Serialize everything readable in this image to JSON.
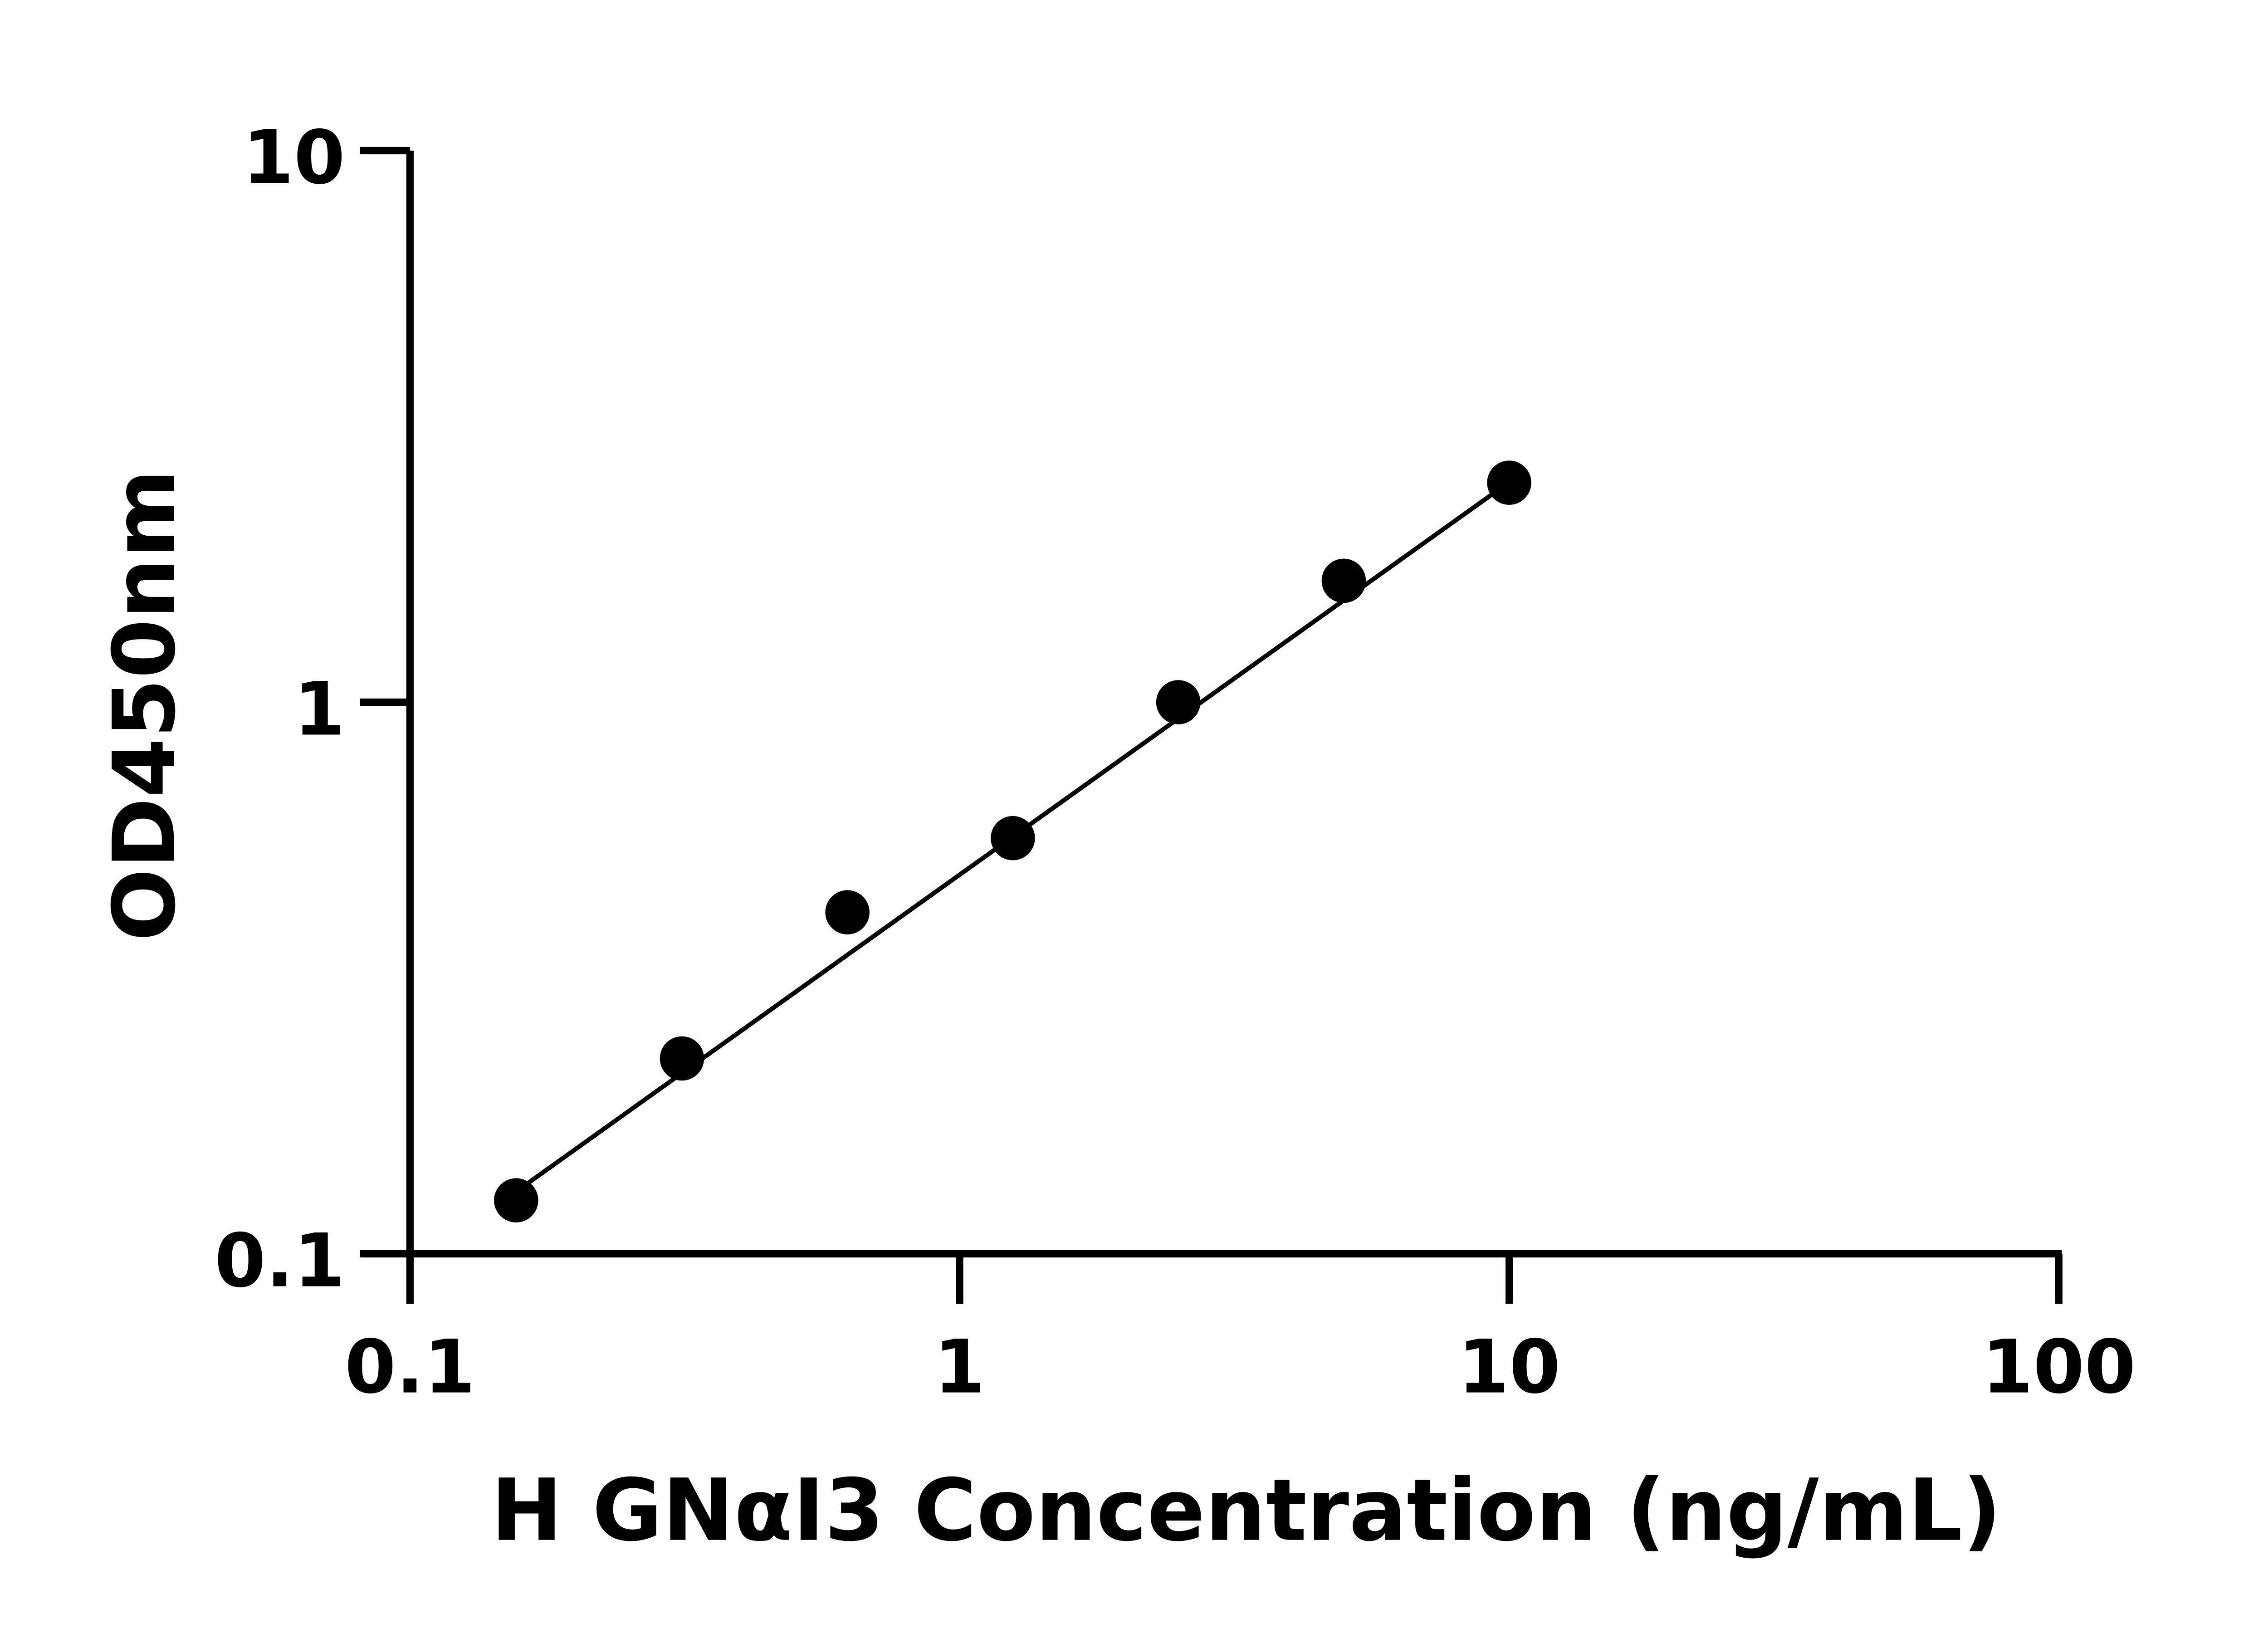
{
  "chart_data": {
    "type": "scatter",
    "title": "",
    "xlabel": "H GNαI3 Concentration (ng/mL)",
    "ylabel": "OD450nm",
    "x_scale": "log",
    "y_scale": "log",
    "xlim": [
      0.1,
      100
    ],
    "ylim": [
      0.1,
      10
    ],
    "x_ticks": [
      "0.1",
      "1",
      "10",
      "100"
    ],
    "y_ticks": [
      "0.1",
      "1",
      "10"
    ],
    "grid": false,
    "marker_color": "#000000",
    "points": [
      {
        "x": 0.156,
        "y": 0.125
      },
      {
        "x": 0.3125,
        "y": 0.226
      },
      {
        "x": 0.625,
        "y": 0.416
      },
      {
        "x": 1.25,
        "y": 0.567
      },
      {
        "x": 2.5,
        "y": 1.0
      },
      {
        "x": 5,
        "y": 1.66
      },
      {
        "x": 10,
        "y": 2.5
      }
    ],
    "fit_line": {
      "x": [
        0.16,
        9.3
      ],
      "y": [
        0.132,
        2.38
      ]
    }
  }
}
